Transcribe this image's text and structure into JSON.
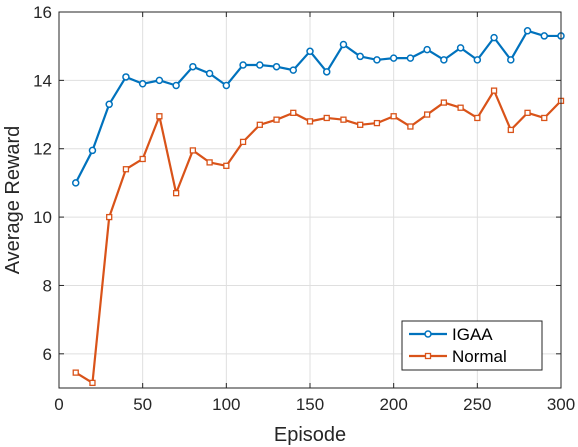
{
  "chart_data": {
    "type": "line",
    "xlabel": "Episode",
    "ylabel": "Average Reward",
    "xlim": [
      0,
      300
    ],
    "ylim": [
      5,
      16
    ],
    "xticks": [
      0,
      50,
      100,
      150,
      200,
      250,
      300
    ],
    "yticks": [
      6,
      8,
      10,
      12,
      14,
      16
    ],
    "grid": true,
    "legend_position": "bottom-right",
    "x": [
      10,
      20,
      30,
      40,
      50,
      60,
      70,
      80,
      90,
      100,
      110,
      120,
      130,
      140,
      150,
      160,
      170,
      180,
      190,
      200,
      210,
      220,
      230,
      240,
      250,
      260,
      270,
      280,
      290,
      300
    ],
    "series": [
      {
        "name": "IGAA",
        "color": "#0072BD",
        "marker": "circle",
        "values": [
          11.0,
          11.95,
          13.3,
          14.1,
          13.9,
          14.0,
          13.85,
          14.4,
          14.2,
          13.85,
          14.45,
          14.45,
          14.4,
          14.3,
          14.85,
          14.25,
          15.05,
          14.7,
          14.6,
          14.65,
          14.65,
          14.9,
          14.6,
          14.95,
          14.6,
          15.25,
          14.6,
          15.45,
          15.3,
          15.3
        ]
      },
      {
        "name": "Normal",
        "color": "#D95319",
        "marker": "square",
        "values": [
          5.45,
          5.15,
          10.0,
          11.4,
          11.7,
          12.95,
          10.7,
          11.95,
          11.6,
          11.5,
          12.2,
          12.7,
          12.85,
          13.05,
          12.8,
          12.9,
          12.85,
          12.7,
          12.75,
          12.95,
          12.65,
          13.0,
          13.35,
          13.2,
          12.9,
          13.7,
          12.55,
          13.05,
          12.9,
          13.4
        ]
      }
    ]
  }
}
